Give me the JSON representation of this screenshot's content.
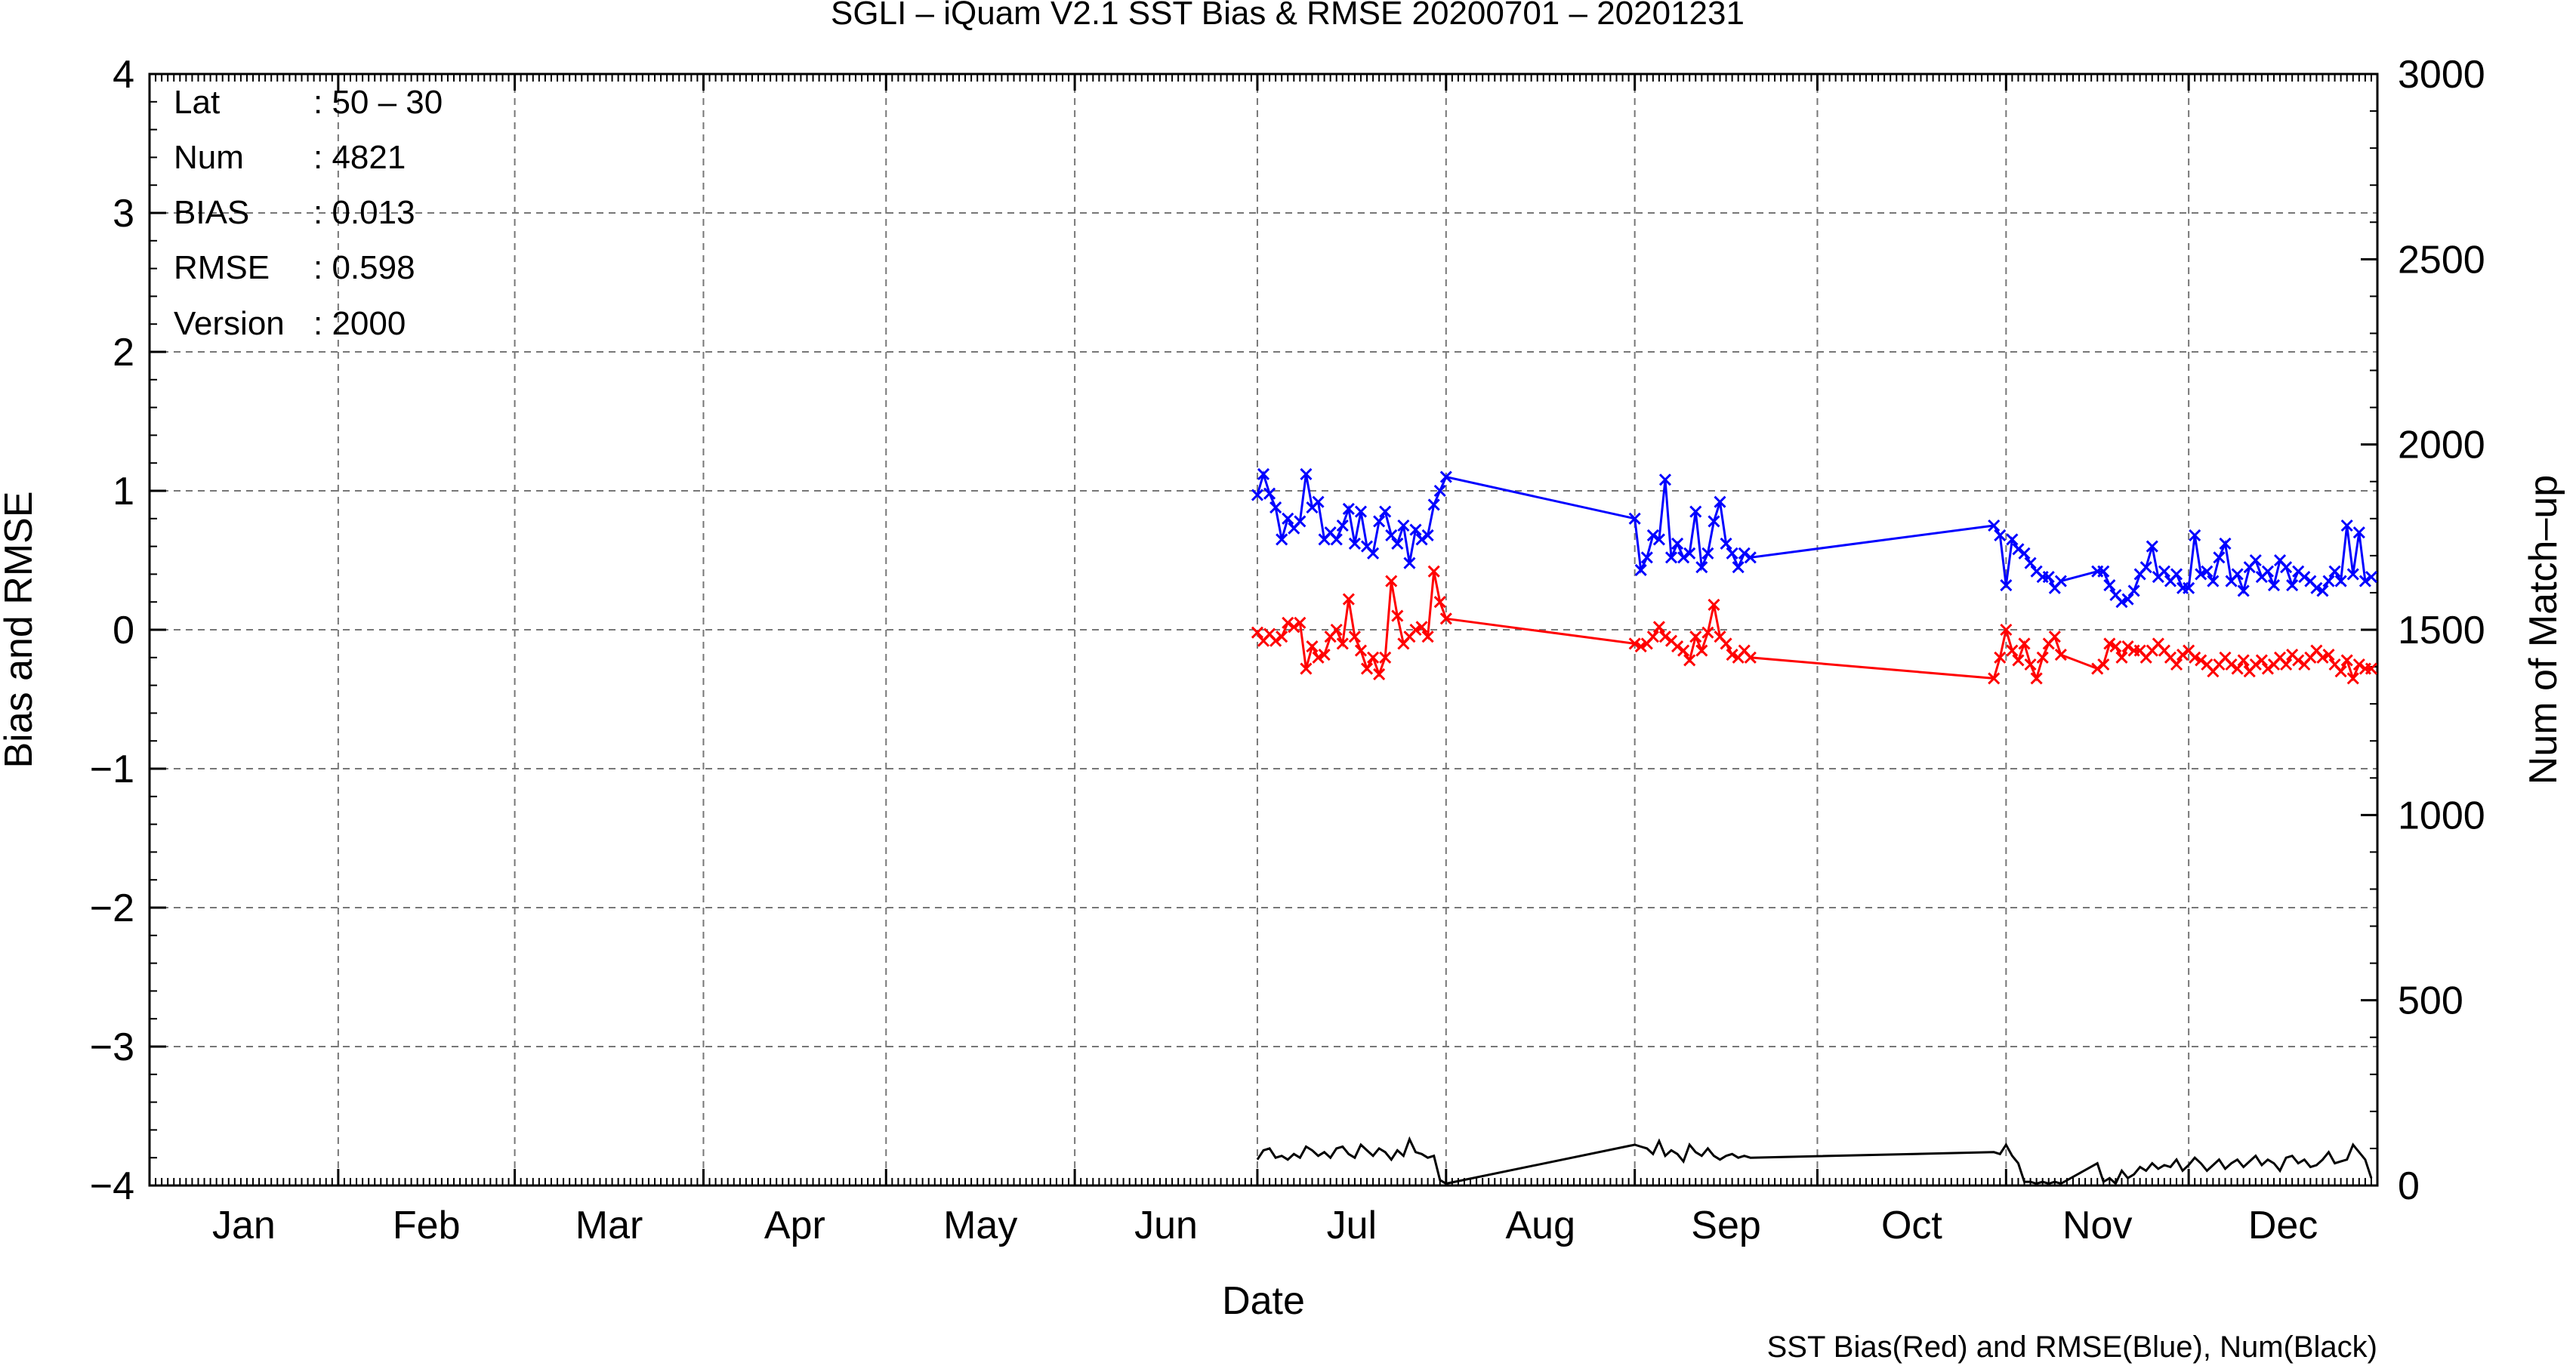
{
  "chart_data": {
    "type": "line",
    "title": "SGLI – iQuam V2.1 SST Bias & RMSE 20200701 – 20201231",
    "xlabel": "Date",
    "ylabel": "Bias and RMSE",
    "y2label": "Num of Match–up",
    "footnote": "SST Bias(Red) and RMSE(Blue), Num(Black)",
    "x_domain": [
      "2020-01-01",
      "2021-01-01"
    ],
    "month_ticks": [
      "2020-01-01",
      "2020-02-01",
      "2020-03-01",
      "2020-04-01",
      "2020-05-01",
      "2020-06-01",
      "2020-07-01",
      "2020-08-01",
      "2020-09-01",
      "2020-10-01",
      "2020-11-01",
      "2020-12-01",
      "2021-01-01"
    ],
    "month_labels": [
      "Jan",
      "Feb",
      "Mar",
      "Apr",
      "May",
      "Jun",
      "Jul",
      "Aug",
      "Sep",
      "Oct",
      "Nov",
      "Dec"
    ],
    "ylim": [
      -4,
      4
    ],
    "yticks": [
      4,
      3,
      2,
      1,
      0,
      -1,
      -2,
      -3,
      -4
    ],
    "ytick_labels": [
      "4",
      "3",
      "2",
      "1",
      "0",
      "−1",
      "−2",
      "−3",
      "−4"
    ],
    "y2lim": [
      0,
      3000
    ],
    "y2ticks": [
      3000,
      2500,
      2000,
      1500,
      1000,
      500,
      0
    ],
    "y2tick_labels": [
      "3000",
      "2500",
      "2000",
      "1500",
      "1000",
      "500",
      "0"
    ],
    "grid": true,
    "stats": [
      {
        "label": "Lat",
        "value": ": 50 – 30"
      },
      {
        "label": "Num",
        "value": ": 4821"
      },
      {
        "label": "BIAS",
        "value": ": 0.013"
      },
      {
        "label": "RMSE",
        "value": ": 0.598"
      },
      {
        "label": "Version",
        "value": ": 2000"
      }
    ],
    "series": [
      {
        "color": "#0000ff",
        "axis": "left",
        "marker": "x",
        "x": [
          "2020-07-01",
          "2020-07-02",
          "2020-07-03",
          "2020-07-04",
          "2020-07-05",
          "2020-07-06",
          "2020-07-07",
          "2020-07-08",
          "2020-07-09",
          "2020-07-10",
          "2020-07-11",
          "2020-07-12",
          "2020-07-13",
          "2020-07-14",
          "2020-07-15",
          "2020-07-16",
          "2020-07-17",
          "2020-07-18",
          "2020-07-19",
          "2020-07-20",
          "2020-07-21",
          "2020-07-22",
          "2020-07-23",
          "2020-07-24",
          "2020-07-25",
          "2020-07-26",
          "2020-07-27",
          "2020-07-28",
          "2020-07-29",
          "2020-07-30",
          "2020-07-31",
          "2020-08-01",
          "2020-09-01",
          "2020-09-02",
          "2020-09-03",
          "2020-09-04",
          "2020-09-05",
          "2020-09-06",
          "2020-09-07",
          "2020-09-08",
          "2020-09-09",
          "2020-09-10",
          "2020-09-11",
          "2020-09-12",
          "2020-09-13",
          "2020-09-14",
          "2020-09-15",
          "2020-09-16",
          "2020-09-17",
          "2020-09-18",
          "2020-09-19",
          "2020-09-20",
          "2020-10-30",
          "2020-10-31",
          "2020-11-01",
          "2020-11-02",
          "2020-11-03",
          "2020-11-04",
          "2020-11-05",
          "2020-11-06",
          "2020-11-07",
          "2020-11-08",
          "2020-11-09",
          "2020-11-10",
          "2020-11-16",
          "2020-11-17",
          "2020-11-18",
          "2020-11-19",
          "2020-11-20",
          "2020-11-21",
          "2020-11-22",
          "2020-11-23",
          "2020-11-24",
          "2020-11-25",
          "2020-11-26",
          "2020-11-27",
          "2020-11-28",
          "2020-11-29",
          "2020-11-30",
          "2020-12-01",
          "2020-12-02",
          "2020-12-03",
          "2020-12-04",
          "2020-12-05",
          "2020-12-06",
          "2020-12-07",
          "2020-12-08",
          "2020-12-09",
          "2020-12-10",
          "2020-12-11",
          "2020-12-12",
          "2020-12-13",
          "2020-12-14",
          "2020-12-15",
          "2020-12-16",
          "2020-12-17",
          "2020-12-18",
          "2020-12-19",
          "2020-12-20",
          "2020-12-21",
          "2020-12-22",
          "2020-12-23",
          "2020-12-24",
          "2020-12-25",
          "2020-12-26",
          "2020-12-27",
          "2020-12-28",
          "2020-12-29",
          "2020-12-30",
          "2020-12-31"
        ],
        "y": [
          0.97,
          1.12,
          0.98,
          0.88,
          0.65,
          0.8,
          0.73,
          0.78,
          1.12,
          0.88,
          0.92,
          0.65,
          0.7,
          0.65,
          0.75,
          0.87,
          0.62,
          0.85,
          0.6,
          0.55,
          0.78,
          0.85,
          0.68,
          0.62,
          0.75,
          0.48,
          0.72,
          0.65,
          0.68,
          0.9,
          1.0,
          1.1,
          0.8,
          0.43,
          0.52,
          0.68,
          0.65,
          1.08,
          0.52,
          0.62,
          0.52,
          0.55,
          0.85,
          0.45,
          0.55,
          0.78,
          0.92,
          0.62,
          0.55,
          0.45,
          0.55,
          0.52,
          0.75,
          0.68,
          0.32,
          0.65,
          0.58,
          0.55,
          0.48,
          0.42,
          0.38,
          0.38,
          0.3,
          0.35,
          0.42,
          0.42,
          0.32,
          0.25,
          0.2,
          0.22,
          0.28,
          0.4,
          0.45,
          0.6,
          0.38,
          0.42,
          0.35,
          0.4,
          0.3,
          0.3,
          0.68,
          0.4,
          0.42,
          0.35,
          0.52,
          0.62,
          0.35,
          0.4,
          0.28,
          0.45,
          0.5,
          0.38,
          0.42,
          0.32,
          0.5,
          0.45,
          0.32,
          0.42,
          0.38,
          0.35,
          0.3,
          0.28,
          0.35,
          0.42,
          0.35,
          0.75,
          0.4,
          0.7,
          0.35,
          0.38
        ]
      },
      {
        "color": "#ff0000",
        "axis": "left",
        "marker": "x",
        "x": [
          "2020-07-01",
          "2020-07-02",
          "2020-07-03",
          "2020-07-04",
          "2020-07-05",
          "2020-07-06",
          "2020-07-07",
          "2020-07-08",
          "2020-07-09",
          "2020-07-10",
          "2020-07-11",
          "2020-07-12",
          "2020-07-13",
          "2020-07-14",
          "2020-07-15",
          "2020-07-16",
          "2020-07-17",
          "2020-07-18",
          "2020-07-19",
          "2020-07-20",
          "2020-07-21",
          "2020-07-22",
          "2020-07-23",
          "2020-07-24",
          "2020-07-25",
          "2020-07-26",
          "2020-07-27",
          "2020-07-28",
          "2020-07-29",
          "2020-07-30",
          "2020-07-31",
          "2020-08-01",
          "2020-09-01",
          "2020-09-02",
          "2020-09-03",
          "2020-09-04",
          "2020-09-05",
          "2020-09-06",
          "2020-09-07",
          "2020-09-08",
          "2020-09-09",
          "2020-09-10",
          "2020-09-11",
          "2020-09-12",
          "2020-09-13",
          "2020-09-14",
          "2020-09-15",
          "2020-09-16",
          "2020-09-17",
          "2020-09-18",
          "2020-09-19",
          "2020-09-20",
          "2020-10-30",
          "2020-10-31",
          "2020-11-01",
          "2020-11-02",
          "2020-11-03",
          "2020-11-04",
          "2020-11-05",
          "2020-11-06",
          "2020-11-07",
          "2020-11-08",
          "2020-11-09",
          "2020-11-10",
          "2020-11-16",
          "2020-11-17",
          "2020-11-18",
          "2020-11-19",
          "2020-11-20",
          "2020-11-21",
          "2020-11-22",
          "2020-11-23",
          "2020-11-24",
          "2020-11-25",
          "2020-11-26",
          "2020-11-27",
          "2020-11-28",
          "2020-11-29",
          "2020-11-30",
          "2020-12-01",
          "2020-12-02",
          "2020-12-03",
          "2020-12-04",
          "2020-12-05",
          "2020-12-06",
          "2020-12-07",
          "2020-12-08",
          "2020-12-09",
          "2020-12-10",
          "2020-12-11",
          "2020-12-12",
          "2020-12-13",
          "2020-12-14",
          "2020-12-15",
          "2020-12-16",
          "2020-12-17",
          "2020-12-18",
          "2020-12-19",
          "2020-12-20",
          "2020-12-21",
          "2020-12-22",
          "2020-12-23",
          "2020-12-24",
          "2020-12-25",
          "2020-12-26",
          "2020-12-27",
          "2020-12-28",
          "2020-12-29",
          "2020-12-30",
          "2020-12-31"
        ],
        "y": [
          -0.02,
          -0.08,
          -0.03,
          -0.08,
          -0.05,
          0.05,
          0.02,
          0.05,
          -0.28,
          -0.12,
          -0.2,
          -0.18,
          -0.05,
          0.0,
          -0.1,
          0.22,
          -0.05,
          -0.15,
          -0.28,
          -0.2,
          -0.32,
          -0.2,
          0.35,
          0.1,
          -0.1,
          -0.05,
          0.0,
          0.02,
          -0.05,
          0.42,
          0.2,
          0.08,
          -0.1,
          -0.12,
          -0.1,
          -0.05,
          0.02,
          -0.05,
          -0.08,
          -0.12,
          -0.15,
          -0.22,
          -0.05,
          -0.15,
          -0.02,
          0.18,
          -0.05,
          -0.1,
          -0.18,
          -0.2,
          -0.15,
          -0.2,
          -0.35,
          -0.2,
          0.0,
          -0.15,
          -0.22,
          -0.1,
          -0.25,
          -0.35,
          -0.2,
          -0.1,
          -0.05,
          -0.18,
          -0.28,
          -0.25,
          -0.1,
          -0.12,
          -0.2,
          -0.12,
          -0.15,
          -0.15,
          -0.2,
          -0.15,
          -0.1,
          -0.15,
          -0.2,
          -0.25,
          -0.18,
          -0.15,
          -0.2,
          -0.22,
          -0.25,
          -0.3,
          -0.25,
          -0.2,
          -0.25,
          -0.28,
          -0.22,
          -0.3,
          -0.25,
          -0.22,
          -0.28,
          -0.25,
          -0.2,
          -0.25,
          -0.18,
          -0.22,
          -0.25,
          -0.2,
          -0.15,
          -0.2,
          -0.18,
          -0.25,
          -0.3,
          -0.22,
          -0.35,
          -0.25,
          -0.28,
          -0.28
        ]
      },
      {
        "color": "#000000",
        "axis": "right",
        "marker": "none",
        "x": [
          "2020-07-01",
          "2020-07-02",
          "2020-07-03",
          "2020-07-04",
          "2020-07-05",
          "2020-07-06",
          "2020-07-07",
          "2020-07-08",
          "2020-07-09",
          "2020-07-10",
          "2020-07-11",
          "2020-07-12",
          "2020-07-13",
          "2020-07-14",
          "2020-07-15",
          "2020-07-16",
          "2020-07-17",
          "2020-07-18",
          "2020-07-19",
          "2020-07-20",
          "2020-07-21",
          "2020-07-22",
          "2020-07-23",
          "2020-07-24",
          "2020-07-25",
          "2020-07-26",
          "2020-07-27",
          "2020-07-28",
          "2020-07-29",
          "2020-07-30",
          "2020-07-31",
          "2020-08-01",
          "2020-09-01",
          "2020-09-02",
          "2020-09-03",
          "2020-09-04",
          "2020-09-05",
          "2020-09-06",
          "2020-09-07",
          "2020-09-08",
          "2020-09-09",
          "2020-09-10",
          "2020-09-11",
          "2020-09-12",
          "2020-09-13",
          "2020-09-14",
          "2020-09-15",
          "2020-09-16",
          "2020-09-17",
          "2020-09-18",
          "2020-09-19",
          "2020-09-20",
          "2020-10-30",
          "2020-10-31",
          "2020-11-01",
          "2020-11-02",
          "2020-11-03",
          "2020-11-04",
          "2020-11-05",
          "2020-11-06",
          "2020-11-07",
          "2020-11-08",
          "2020-11-09",
          "2020-11-10",
          "2020-11-16",
          "2020-11-17",
          "2020-11-18",
          "2020-11-19",
          "2020-11-20",
          "2020-11-21",
          "2020-11-22",
          "2020-11-23",
          "2020-11-24",
          "2020-11-25",
          "2020-11-26",
          "2020-11-27",
          "2020-11-28",
          "2020-11-29",
          "2020-11-30",
          "2020-12-01",
          "2020-12-02",
          "2020-12-03",
          "2020-12-04",
          "2020-12-05",
          "2020-12-06",
          "2020-12-07",
          "2020-12-08",
          "2020-12-09",
          "2020-12-10",
          "2020-12-11",
          "2020-12-12",
          "2020-12-13",
          "2020-12-14",
          "2020-12-15",
          "2020-12-16",
          "2020-12-17",
          "2020-12-18",
          "2020-12-19",
          "2020-12-20",
          "2020-12-21",
          "2020-12-22",
          "2020-12-23",
          "2020-12-24",
          "2020-12-25",
          "2020-12-26",
          "2020-12-27",
          "2020-12-28",
          "2020-12-29",
          "2020-12-30",
          "2020-12-31"
        ],
        "y": [
          70,
          95,
          100,
          75,
          80,
          70,
          85,
          75,
          105,
          95,
          80,
          90,
          75,
          100,
          105,
          85,
          75,
          110,
          95,
          80,
          100,
          90,
          70,
          95,
          80,
          125,
          90,
          85,
          75,
          80,
          15,
          5,
          110,
          105,
          100,
          85,
          120,
          80,
          95,
          85,
          65,
          110,
          90,
          80,
          100,
          80,
          70,
          80,
          85,
          75,
          80,
          75,
          90,
          85,
          110,
          80,
          60,
          10,
          10,
          5,
          10,
          5,
          10,
          5,
          60,
          10,
          20,
          5,
          40,
          20,
          30,
          50,
          40,
          60,
          45,
          55,
          50,
          70,
          40,
          55,
          75,
          60,
          40,
          55,
          70,
          45,
          60,
          70,
          50,
          65,
          80,
          55,
          70,
          60,
          40,
          75,
          80,
          60,
          70,
          50,
          55,
          70,
          90,
          60,
          65,
          70,
          110,
          90,
          70,
          20
        ]
      }
    ]
  }
}
